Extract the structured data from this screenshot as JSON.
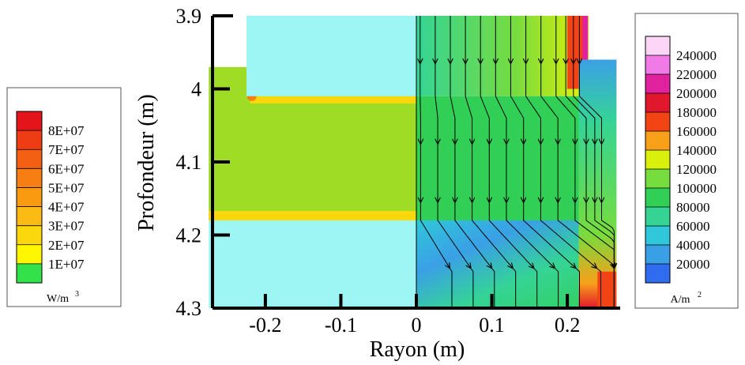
{
  "chart_data": {
    "type": "heatmap",
    "title": "",
    "xlabel": "Rayon (m)",
    "ylabel": "Profondeur (m)",
    "xlim": [
      -0.27,
      0.27
    ],
    "ylim": [
      3.9,
      4.3
    ],
    "y_inverted": true,
    "x_ticks": [
      -0.2,
      -0.1,
      0,
      0.1,
      0.2
    ],
    "x_tick_labels": [
      "-0.2",
      "-0.1",
      "0",
      "0.1",
      "0.2"
    ],
    "y_ticks": [
      3.9,
      4,
      4.1,
      4.2,
      4.3
    ],
    "y_tick_labels": [
      "3.9",
      "4",
      "4.1",
      "4.2",
      "4.3"
    ],
    "left_half": {
      "quantity": "power density",
      "unit": "W/m3",
      "legend": {
        "placement": "left",
        "unit_label": "W/m",
        "unit_sup": "3",
        "levels": [
          "8E+07",
          "7E+07",
          "6E+07",
          "5E+07",
          "4E+07",
          "3E+07",
          "2E+07",
          "1E+07"
        ],
        "colors": [
          "#e4151a",
          "#ee3d14",
          "#f36014",
          "#f67e12",
          "#fa9a10",
          "#fbba14",
          "#fbd80e",
          "#fff700",
          "#33e14a"
        ]
      }
    },
    "right_half": {
      "quantity": "current density",
      "unit": "A/m2",
      "legend": {
        "placement": "right",
        "unit_label": "A/m",
        "unit_sup": "2",
        "levels": [
          "240000",
          "220000",
          "200000",
          "180000",
          "160000",
          "140000",
          "120000",
          "100000",
          "80000",
          "60000",
          "40000",
          "20000"
        ],
        "colors": [
          "#fcd6f6",
          "#f07ae6",
          "#e1229f",
          "#e0172d",
          "#f14314",
          "#f8a01a",
          "#d9ef0c",
          "#77dc3e",
          "#31cf55",
          "#35d495",
          "#2fc7d9",
          "#3aa0e6",
          "#2f6cf0"
        ]
      }
    },
    "regions": [
      {
        "name": "pool",
        "x": [
          -0.275,
          0.0
        ],
        "y": [
          3.97,
          4.18
        ],
        "field": "power density"
      },
      {
        "name": "pool",
        "x": [
          0.0,
          0.265
        ],
        "y": [
          4.01,
          4.18
        ],
        "field": "current density"
      },
      {
        "name": "upper-electrode",
        "x": [
          -0.225,
          0.0
        ],
        "y": [
          3.9,
          4.01
        ]
      },
      {
        "name": "lower-electrode",
        "x": [
          -0.275,
          0.0
        ],
        "y": [
          4.18,
          4.3
        ]
      },
      {
        "name": "crucible-wall",
        "x": [
          0.215,
          0.265
        ],
        "y": [
          3.96,
          4.3
        ]
      }
    ],
    "streamlines_x_start": [
      0.005,
      0.025,
      0.045,
      0.065,
      0.085,
      0.105,
      0.125,
      0.145,
      0.165,
      0.185,
      0.198,
      0.208,
      0.216
    ]
  }
}
